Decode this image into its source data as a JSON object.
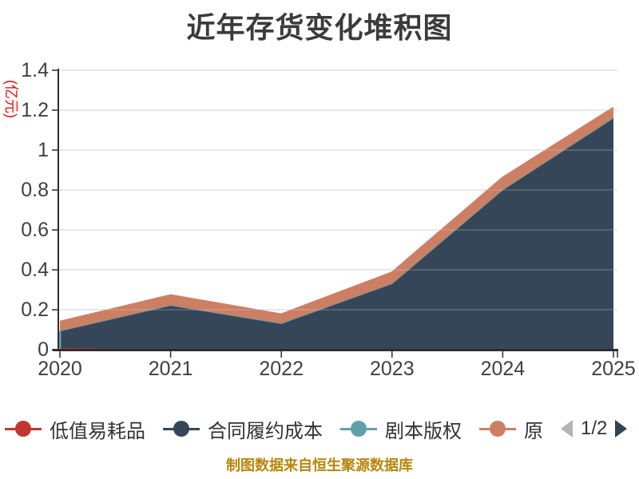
{
  "title": "近年存货变化堆积图",
  "chart_data": {
    "type": "area",
    "stacked": true,
    "title": "近年存货变化堆积图",
    "categories": [
      "2020",
      "2021",
      "2022",
      "2023",
      "2024",
      "2025"
    ],
    "series": [
      {
        "name": "低值易耗品",
        "color": "#c23531",
        "values": [
          0.008,
          0.002,
          0.001,
          0.001,
          0.001,
          0.001
        ]
      },
      {
        "name": "合同履约成本",
        "color": "#364659",
        "values": [
          0.085,
          0.22,
          0.13,
          0.33,
          0.8,
          1.16
        ]
      },
      {
        "name": "剧本版权",
        "color": "#61a0a8",
        "values": [
          0.002,
          0.001,
          0.001,
          0.001,
          0.001,
          0.001
        ]
      },
      {
        "name": "原",
        "color": "#cd7f63",
        "values": [
          0.045,
          0.05,
          0.045,
          0.055,
          0.06,
          0.05
        ]
      }
    ],
    "totals": [
      0.14,
      0.273,
      0.177,
      0.387,
      0.862,
      1.212
    ],
    "y_axis": {
      "name": "(亿元)",
      "name_color": "#ee1111",
      "ticks": [
        0,
        0.2,
        0.4,
        0.6,
        0.8,
        1,
        1.2,
        1.4
      ],
      "lim": [
        0,
        1.4
      ]
    },
    "x_axis": {
      "lim": [
        "2020",
        "2025"
      ]
    },
    "grid": true,
    "legend_position": "bottom"
  },
  "legend": {
    "page_indicator": "1/2",
    "prev_enabled": false,
    "next_enabled": true
  },
  "footer": {
    "text": "制图数据来自恒生聚源数据库",
    "color": "#b8860b"
  },
  "colors": {
    "grid_line": "#cccccc",
    "axis_line": "#2e2e2e",
    "tick_label": "#404040",
    "title_text": "#3b3b3b"
  }
}
